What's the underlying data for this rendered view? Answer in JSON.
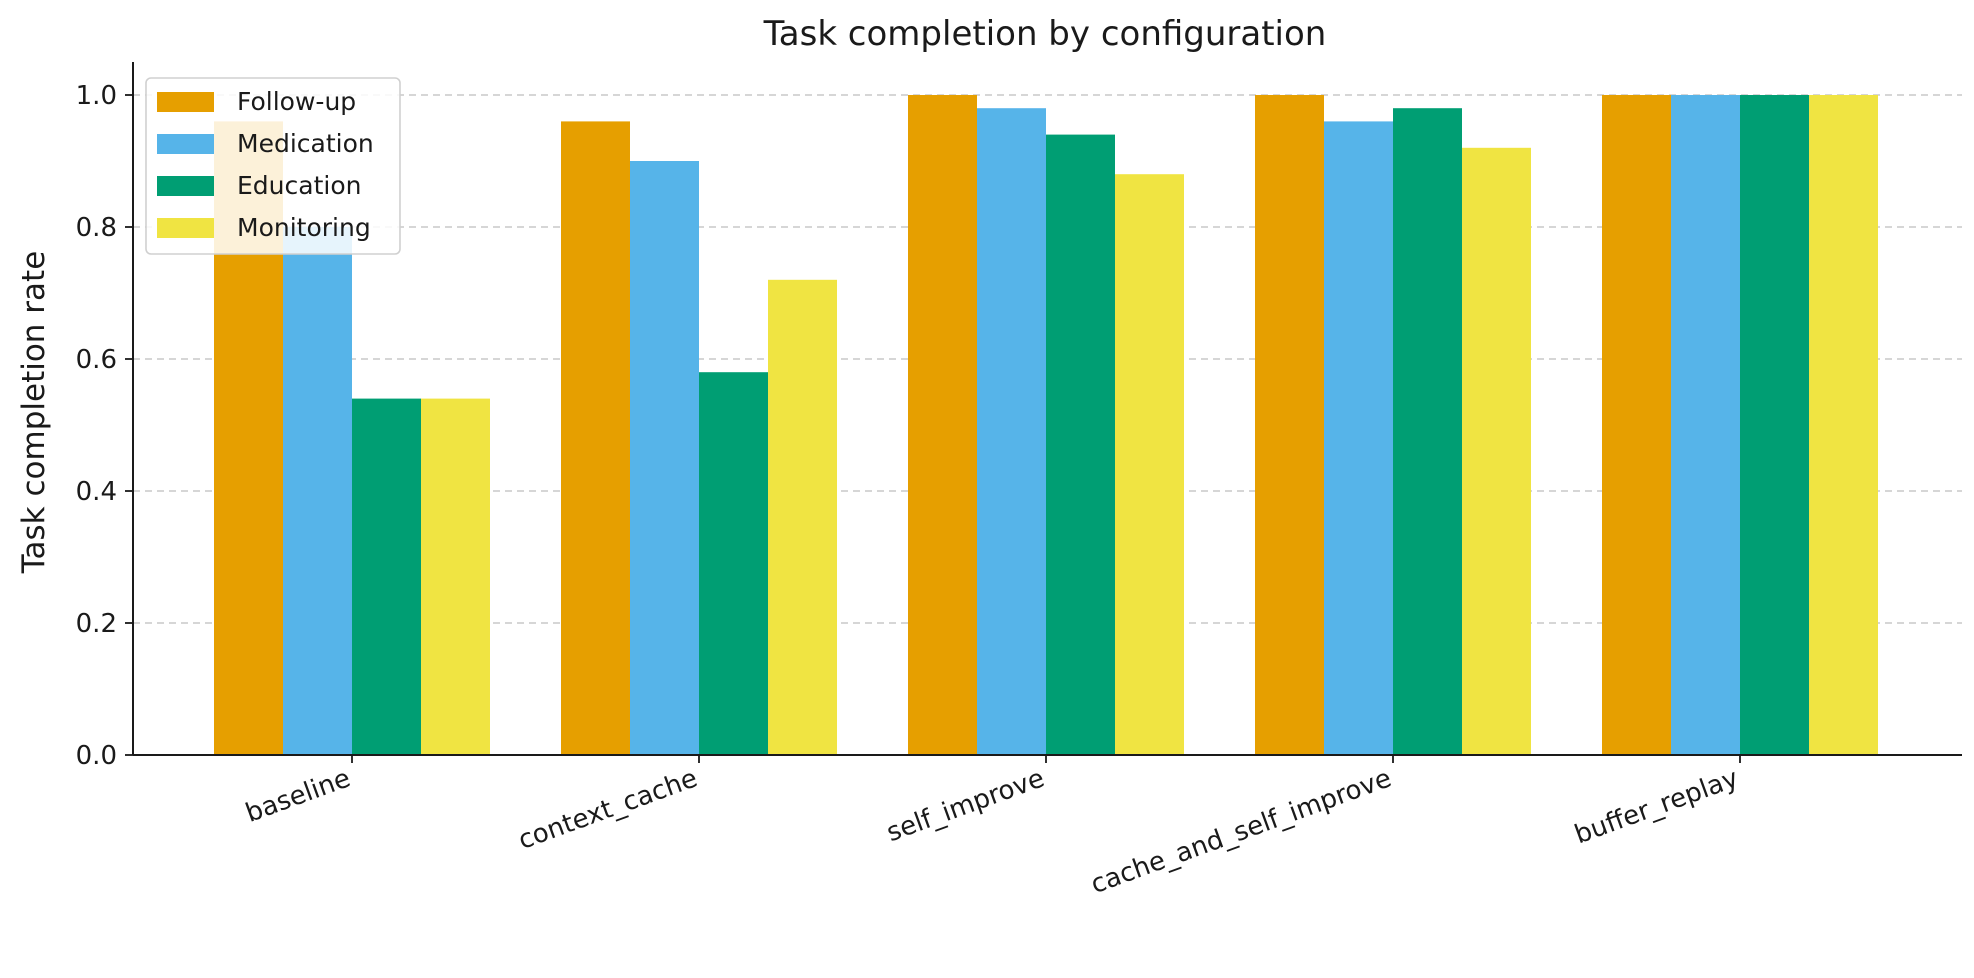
{
  "chart_data": {
    "type": "bar",
    "title": "Task completion by configuration",
    "xlabel": "",
    "ylabel": "Task completion rate",
    "ylim": [
      0,
      1.05
    ],
    "yticks": [
      "0.0",
      "0.2",
      "0.4",
      "0.6",
      "0.8",
      "1.0"
    ],
    "ytick_values": [
      0,
      0.2,
      0.4,
      0.6,
      0.8,
      1.0
    ],
    "grid": "y-dashed",
    "legend_position": "top-left",
    "categories": [
      "baseline",
      "context_cache",
      "self_improve",
      "cache_and_self_improve",
      "buffer_replay"
    ],
    "series": [
      {
        "name": "Follow-up",
        "color": "#E69F00",
        "values": [
          0.96,
          0.96,
          1.0,
          1.0,
          1.0
        ]
      },
      {
        "name": "Medication",
        "color": "#56B4E9",
        "values": [
          0.8,
          0.9,
          0.98,
          0.96,
          1.0
        ]
      },
      {
        "name": "Education",
        "color": "#009E73",
        "values": [
          0.54,
          0.58,
          0.94,
          0.98,
          1.0
        ]
      },
      {
        "name": "Monitoring",
        "color": "#F0E442",
        "values": [
          0.54,
          0.72,
          0.88,
          0.92,
          1.0
        ]
      }
    ]
  }
}
